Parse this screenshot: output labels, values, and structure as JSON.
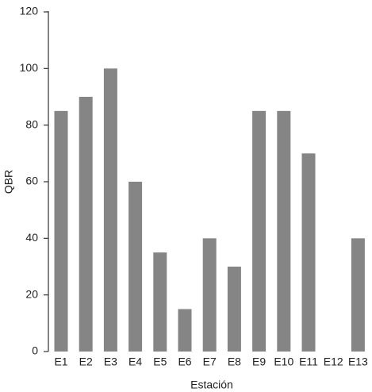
{
  "chart_data": {
    "type": "bar",
    "x_label": "Estación",
    "y_label": "QBR",
    "categories": [
      "E1",
      "E2",
      "E3",
      "E4",
      "E5",
      "E6",
      "E7",
      "E8",
      "E9",
      "E10",
      "E11",
      "E12",
      "E13"
    ],
    "values": [
      85,
      90,
      100,
      60,
      35,
      15,
      40,
      30,
      85,
      85,
      70,
      0,
      40
    ],
    "color": "#858585",
    "ylim": [
      0,
      120
    ],
    "yticks": [
      0,
      20,
      40,
      60,
      80,
      100,
      120
    ],
    "grid": false
  }
}
